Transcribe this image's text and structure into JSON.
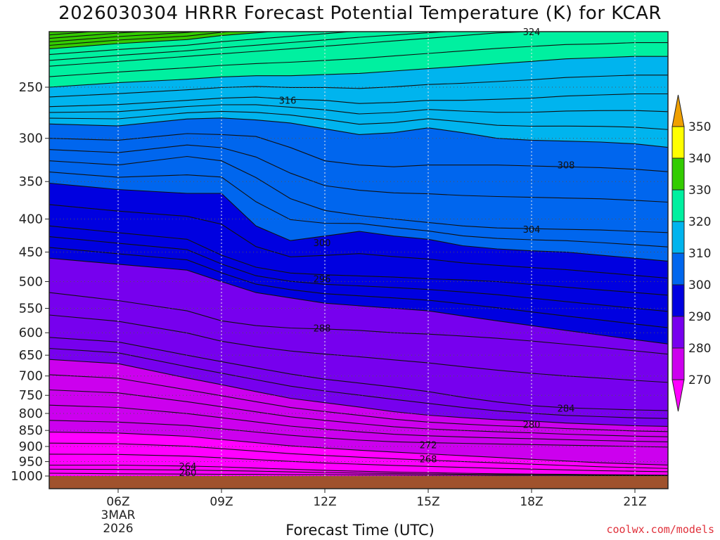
{
  "chart_data": {
    "type": "heatmap",
    "title": "2026030304 HRRR Forecast Potential Temperature (K) for KCAR",
    "xlabel": "Forecast Time (UTC)",
    "ylabel": "",
    "credit": "coolwx.com/models",
    "x_ticks": [
      "06Z",
      "09Z",
      "12Z",
      "15Z",
      "18Z",
      "21Z"
    ],
    "x_date": [
      "3MAR",
      "2026"
    ],
    "y_ticks": [
      250,
      300,
      350,
      400,
      450,
      500,
      550,
      600,
      650,
      700,
      750,
      800,
      850,
      900,
      950,
      1000
    ],
    "y_axis": "pressure (log scale, inverted)",
    "ylim": [
      1000,
      200
    ],
    "grid": "dotted",
    "colorbar": {
      "levels": [
        270,
        280,
        290,
        300,
        310,
        320,
        330,
        340,
        350
      ],
      "colors": [
        "#ff00ff",
        "#cc00ee",
        "#7700ee",
        "#0000e0",
        "#0066ee",
        "#00b4ee",
        "#00f0a0",
        "#33cc00",
        "#ffff00",
        "#f0a000"
      ],
      "extend": "both",
      "placement": "right"
    },
    "isotherms": [
      {
        "label": "324",
        "x": "18Z",
        "y": 205
      },
      {
        "label": "316",
        "x": "10Z",
        "y": 262
      },
      {
        "label": "308",
        "x": "19Z",
        "y": 330
      },
      {
        "label": "304",
        "x": "18Z",
        "y": 415
      },
      {
        "label": "300",
        "x": "11Z",
        "y": 435
      },
      {
        "label": "296",
        "x": "11Z",
        "y": 495
      },
      {
        "label": "288",
        "x": "11Z",
        "y": 590
      },
      {
        "label": "284",
        "x": "19Z",
        "y": 785
      },
      {
        "label": "280",
        "x": "18Z",
        "y": 832
      },
      {
        "label": "272",
        "x": "15Z",
        "y": 895
      },
      {
        "label": "268",
        "x": "15Z",
        "y": 940
      },
      {
        "label": "264",
        "x": "07Z",
        "y": 965
      },
      {
        "label": "260",
        "x": "07Z",
        "y": 988
      }
    ],
    "ground": "below 1000 hPa"
  }
}
